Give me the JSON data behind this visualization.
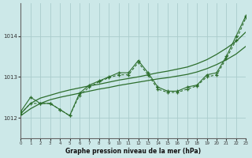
{
  "title": "Graphe pression niveau de la mer (hPa)",
  "bg_color": "#cce8e8",
  "grid_color": "#aacccc",
  "line_color": "#2d6e2d",
  "xlim": [
    0,
    23
  ],
  "ylim": [
    1011.5,
    1014.8
  ],
  "yticks": [
    1012,
    1013,
    1014
  ],
  "xticks": [
    0,
    1,
    2,
    3,
    4,
    5,
    6,
    7,
    8,
    9,
    10,
    11,
    12,
    13,
    14,
    15,
    16,
    17,
    18,
    19,
    20,
    21,
    22,
    23
  ],
  "series_jagged1": [
    1012.15,
    1012.5,
    1012.35,
    1012.35,
    1012.2,
    1012.05,
    1012.6,
    1012.8,
    1012.9,
    1013.0,
    1013.1,
    1013.1,
    1013.4,
    1013.1,
    1012.75,
    1012.65,
    1012.65,
    1012.75,
    1012.8,
    1013.05,
    1013.1,
    1013.5,
    1014.0,
    1014.5
  ],
  "series_jagged2": [
    1012.1,
    1012.35,
    1012.35,
    1012.35,
    1012.2,
    1012.05,
    1012.55,
    1012.75,
    1012.88,
    1012.98,
    1013.05,
    1013.05,
    1013.35,
    1013.05,
    1012.7,
    1012.62,
    1012.62,
    1012.7,
    1012.78,
    1013.0,
    1013.05,
    1013.45,
    1013.9,
    1014.45
  ],
  "series_smooth1": [
    1012.1,
    1012.35,
    1012.48,
    1012.55,
    1012.62,
    1012.68,
    1012.73,
    1012.78,
    1012.82,
    1012.87,
    1012.92,
    1012.96,
    1013.0,
    1013.05,
    1013.1,
    1013.14,
    1013.19,
    1013.24,
    1013.32,
    1013.42,
    1013.55,
    1013.7,
    1013.87,
    1014.1
  ],
  "series_smooth2": [
    1012.05,
    1012.22,
    1012.35,
    1012.44,
    1012.5,
    1012.55,
    1012.6,
    1012.65,
    1012.7,
    1012.74,
    1012.79,
    1012.83,
    1012.87,
    1012.91,
    1012.95,
    1012.98,
    1013.02,
    1013.06,
    1013.12,
    1013.2,
    1013.3,
    1013.42,
    1013.56,
    1013.75
  ]
}
